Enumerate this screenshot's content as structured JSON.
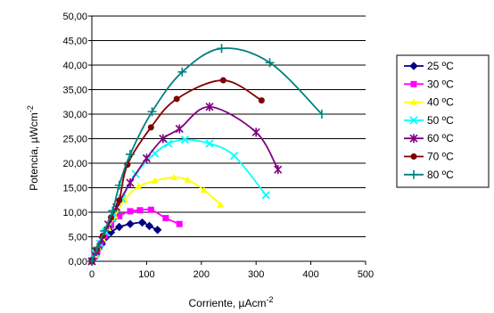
{
  "chart_data": {
    "type": "scatter",
    "xlabel": "Corriente, µAcm",
    "xlabel_superscript": "-2",
    "ylabel": "Potencia, µWcm",
    "ylabel_superscript": "-2",
    "xlim": [
      0,
      500
    ],
    "ylim": [
      0,
      50
    ],
    "x_ticks": [
      "0",
      "100",
      "200",
      "300",
      "400",
      "500"
    ],
    "y_ticks": [
      "0,00",
      "5,00",
      "10,00",
      "15,00",
      "20,00",
      "25,00",
      "30,00",
      "35,00",
      "40,00",
      "45,00",
      "50,00"
    ],
    "grid": "horizontal",
    "legend_position": "right",
    "series": [
      {
        "name": "25 ºC",
        "color": "#000080",
        "marker": "diamond",
        "points": [
          [
            0,
            0
          ],
          [
            4,
            0.7
          ],
          [
            8,
            1.6
          ],
          [
            12,
            2.5
          ],
          [
            18,
            3.5
          ],
          [
            25,
            4.8
          ],
          [
            35,
            5.9
          ],
          [
            50,
            7.0
          ],
          [
            70,
            7.6
          ],
          [
            92,
            7.9
          ],
          [
            105,
            7.2
          ],
          [
            120,
            6.4
          ]
        ]
      },
      {
        "name": "30 ºC",
        "color": "#FF00FF",
        "marker": "square",
        "points": [
          [
            0,
            0
          ],
          [
            5,
            1.0
          ],
          [
            10,
            2.2
          ],
          [
            16,
            3.6
          ],
          [
            24,
            5.2
          ],
          [
            35,
            7.3
          ],
          [
            50,
            9.2
          ],
          [
            70,
            10.2
          ],
          [
            88,
            10.4
          ],
          [
            108,
            10.5
          ],
          [
            135,
            8.8
          ],
          [
            160,
            7.6
          ]
        ]
      },
      {
        "name": "40 ºC",
        "color": "#FFFF00",
        "marker": "triangle",
        "points": [
          [
            0,
            0
          ],
          [
            6,
            1.3
          ],
          [
            12,
            2.8
          ],
          [
            20,
            4.6
          ],
          [
            30,
            6.7
          ],
          [
            42,
            9.2
          ],
          [
            60,
            12.5
          ],
          [
            85,
            15.2
          ],
          [
            115,
            16.4
          ],
          [
            150,
            17.1
          ],
          [
            175,
            16.6
          ],
          [
            205,
            14.5
          ],
          [
            235,
            11.5
          ]
        ]
      },
      {
        "name": "50 ºC",
        "color": "#00FFFF",
        "marker": "x",
        "points": [
          [
            0,
            0
          ],
          [
            7,
            1.6
          ],
          [
            15,
            3.6
          ],
          [
            25,
            6.0
          ],
          [
            38,
            8.8
          ],
          [
            55,
            12.8
          ],
          [
            80,
            17.8
          ],
          [
            115,
            22.0
          ],
          [
            140,
            24.0
          ],
          [
            170,
            24.8
          ],
          [
            215,
            24.0
          ],
          [
            260,
            21.5
          ],
          [
            318,
            13.5
          ]
        ]
      },
      {
        "name": "60 ºC",
        "color": "#800080",
        "marker": "asterisk",
        "points": [
          [
            0,
            0
          ],
          [
            8,
            2.0
          ],
          [
            18,
            4.4
          ],
          [
            30,
            7.5
          ],
          [
            45,
            11.0
          ],
          [
            70,
            16.0
          ],
          [
            100,
            21.0
          ],
          [
            130,
            25.0
          ],
          [
            160,
            27.0
          ],
          [
            215,
            31.5
          ],
          [
            300,
            26.3
          ],
          [
            340,
            18.7
          ]
        ]
      },
      {
        "name": "70 ºC",
        "color": "#800000",
        "marker": "circle",
        "points": [
          [
            0,
            0
          ],
          [
            9,
            2.4
          ],
          [
            20,
            5.2
          ],
          [
            35,
            8.9
          ],
          [
            50,
            12.4
          ],
          [
            65,
            19.7
          ],
          [
            108,
            27.3
          ],
          [
            155,
            33.1
          ],
          [
            240,
            36.9
          ],
          [
            310,
            32.8
          ]
        ]
      },
      {
        "name": "80 ºC",
        "color": "#008080",
        "marker": "plus",
        "points": [
          [
            0,
            0
          ],
          [
            10,
            2.8
          ],
          [
            23,
            6.2
          ],
          [
            38,
            10.3
          ],
          [
            50,
            15.5
          ],
          [
            70,
            21.8
          ],
          [
            110,
            30.5
          ],
          [
            165,
            38.6
          ],
          [
            237,
            43.4
          ],
          [
            325,
            40.5
          ],
          [
            420,
            30.0
          ]
        ]
      }
    ]
  }
}
